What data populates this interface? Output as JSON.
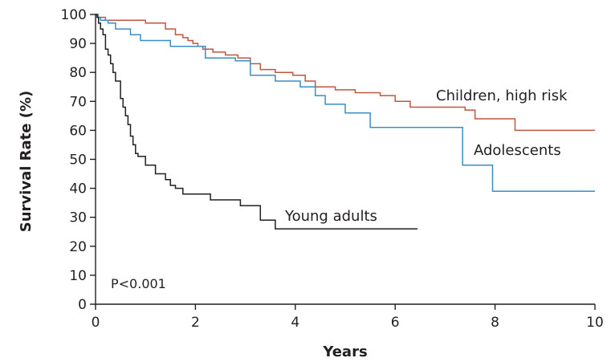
{
  "chart_data": {
    "type": "line",
    "step": true,
    "xlabel": "Years",
    "ylabel": "Survival Rate (%)",
    "xlim": [
      0,
      10
    ],
    "ylim": [
      0,
      100
    ],
    "xticks": [
      "0",
      "2",
      "4",
      "6",
      "8",
      "10"
    ],
    "yticks": [
      "0",
      "10",
      "20",
      "30",
      "40",
      "50",
      "60",
      "70",
      "80",
      "90",
      "100"
    ],
    "grid": false,
    "annotation": "P<0.001",
    "series": [
      {
        "name": "Children, high risk",
        "color": "#c0563f",
        "x": [
          0,
          0.05,
          0.1,
          0.2,
          1.0,
          1.4,
          1.6,
          1.75,
          1.85,
          1.95,
          2.05,
          2.15,
          2.35,
          2.6,
          2.85,
          3.1,
          3.3,
          3.6,
          3.95,
          4.2,
          4.4,
          4.8,
          5.2,
          5.7,
          6.0,
          6.3,
          7.4,
          7.6,
          8.4,
          10.0
        ],
        "y": [
          100,
          99,
          99,
          98,
          97,
          95,
          93,
          92,
          91,
          90,
          89,
          88,
          87,
          86,
          85,
          83,
          81,
          80,
          79,
          77,
          75,
          74,
          73,
          72,
          70,
          68,
          67,
          64,
          60,
          60
        ]
      },
      {
        "name": "Adolescents",
        "color": "#3a8ec4",
        "x": [
          0,
          0.05,
          0.1,
          0.25,
          0.4,
          0.7,
          0.9,
          1.5,
          2.2,
          2.8,
          3.1,
          3.6,
          4.1,
          4.4,
          4.6,
          5.0,
          5.5,
          7.35,
          7.95,
          10.0
        ],
        "y": [
          100,
          99,
          98,
          97,
          95,
          93,
          91,
          89,
          85,
          84,
          79,
          77,
          75,
          72,
          69,
          66,
          61,
          48,
          39,
          39
        ]
      },
      {
        "name": "Young adults",
        "color": "#231f20",
        "x": [
          0,
          0.03,
          0.06,
          0.1,
          0.15,
          0.2,
          0.25,
          0.3,
          0.35,
          0.4,
          0.5,
          0.55,
          0.6,
          0.65,
          0.7,
          0.75,
          0.8,
          0.85,
          1.0,
          1.2,
          1.4,
          1.5,
          1.6,
          1.75,
          2.3,
          2.9,
          3.3,
          3.6,
          6.45
        ],
        "y": [
          100,
          99,
          97,
          95,
          93,
          88,
          86,
          83,
          80,
          77,
          71,
          68,
          65,
          62,
          58,
          55,
          52,
          51,
          48,
          45,
          43,
          41,
          40,
          38,
          36,
          34,
          29,
          26,
          26
        ]
      }
    ]
  }
}
